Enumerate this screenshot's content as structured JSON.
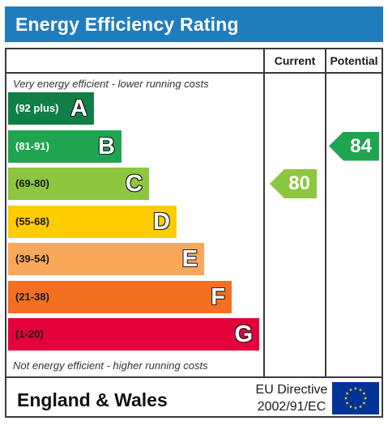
{
  "header": {
    "title": "Energy Efficiency Rating"
  },
  "columns": {
    "current": "Current",
    "potential": "Potential"
  },
  "captions": {
    "top": "Very energy efficient - lower running costs",
    "bottom": "Not energy efficient - higher running costs"
  },
  "chart_data": {
    "type": "bar",
    "title": "Energy Efficiency Rating",
    "categories": [
      "A",
      "B",
      "C",
      "D",
      "E",
      "F",
      "G"
    ],
    "bands": [
      {
        "letter": "A",
        "range": "(92 plus)",
        "color": "#0f7f45",
        "text_color": "#ffffff"
      },
      {
        "letter": "B",
        "range": "(81-91)",
        "color": "#1fa54f",
        "text_color": "#ffffff"
      },
      {
        "letter": "C",
        "range": "(69-80)",
        "color": "#8dc63f",
        "text_color": "#1a1a1a"
      },
      {
        "letter": "D",
        "range": "(55-68)",
        "color": "#ffcc00",
        "text_color": "#1a1a1a"
      },
      {
        "letter": "E",
        "range": "(39-54)",
        "color": "#f9a85a",
        "text_color": "#1a1a1a"
      },
      {
        "letter": "F",
        "range": "(21-38)",
        "color": "#f36f21",
        "text_color": "#1a1a1a"
      },
      {
        "letter": "G",
        "range": "(1-20)",
        "color": "#e4003b",
        "text_color": "#1a1a1a"
      }
    ],
    "series": [
      {
        "name": "Current",
        "value": 80,
        "band": "C",
        "color": "#8dc63f"
      },
      {
        "name": "Potential",
        "value": 84,
        "band": "B",
        "color": "#1fa54f"
      }
    ]
  },
  "footer": {
    "country": "England & Wales",
    "directive_line1": "EU Directive",
    "directive_line2": "2002/91/EC",
    "flag_color": "#003399",
    "star_color": "#ffcc00"
  }
}
